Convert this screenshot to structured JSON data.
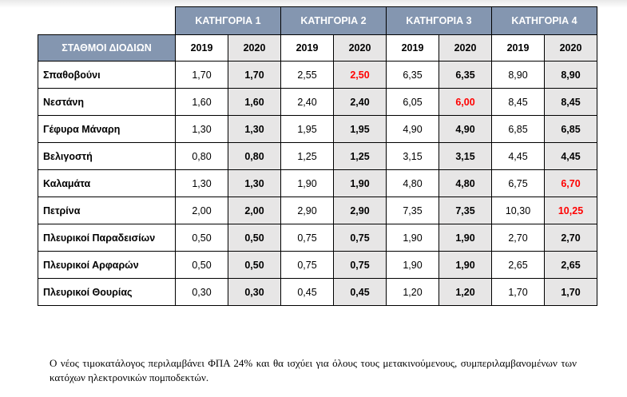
{
  "table": {
    "header_label": "ΣΤΑΘΜΟΙ ΔΙΟΔΙΩΝ",
    "categories": [
      "ΚΑΤΗΓΟΡΙΑ 1",
      "ΚΑΤΗΓΟΡΙΑ 2",
      "ΚΑΤΗΓΟΡΙΑ 3",
      "ΚΑΤΗΓΟΡΙΑ 4"
    ],
    "years": [
      "2019",
      "2020"
    ],
    "colors": {
      "header_bg": "#8496b0",
      "shade_2020": "#e7e6e6",
      "changed": "#ff0000"
    },
    "rows": [
      {
        "station": "Σπαθοβούνι",
        "values": [
          "1,70",
          "1,70",
          "2,55",
          "2,50",
          "6,35",
          "6,35",
          "8,90",
          "8,90"
        ],
        "changed": [
          3
        ]
      },
      {
        "station": "Νεστάνη",
        "values": [
          "1,60",
          "1,60",
          "2,40",
          "2,40",
          "6,05",
          "6,00",
          "8,45",
          "8,45"
        ],
        "changed": [
          5
        ]
      },
      {
        "station": "Γέφυρα Μάναρη",
        "values": [
          "1,30",
          "1,30",
          "1,95",
          "1,95",
          "4,90",
          "4,90",
          "6,85",
          "6,85"
        ],
        "changed": []
      },
      {
        "station": "Βελιγοστή",
        "values": [
          "0,80",
          "0,80",
          "1,25",
          "1,25",
          "3,15",
          "3,15",
          "4,45",
          "4,45"
        ],
        "changed": []
      },
      {
        "station": "Καλαμάτα",
        "values": [
          "1,30",
          "1,30",
          "1,90",
          "1,90",
          "4,80",
          "4,80",
          "6,75",
          "6,70"
        ],
        "changed": [
          7
        ]
      },
      {
        "station": "Πετρίνα",
        "values": [
          "2,00",
          "2,00",
          "2,90",
          "2,90",
          "7,35",
          "7,35",
          "10,30",
          "10,25"
        ],
        "changed": [
          7
        ]
      },
      {
        "station": "Πλευρικοί Παραδεισίων",
        "values": [
          "0,50",
          "0,50",
          "0,75",
          "0,75",
          "1,90",
          "1,90",
          "2,70",
          "2,70"
        ],
        "changed": []
      },
      {
        "station": "Πλευρικοί Αρφαρών",
        "values": [
          "0,50",
          "0,50",
          "0,75",
          "0,75",
          "1,90",
          "1,90",
          "2,65",
          "2,65"
        ],
        "changed": []
      },
      {
        "station": "Πλευρικοί Θουρίας",
        "values": [
          "0,30",
          "0,30",
          "0,45",
          "0,45",
          "1,20",
          "1,20",
          "1,70",
          "1,70"
        ],
        "changed": []
      }
    ]
  },
  "note": "Ο νέος τιμοκατάλογος περιλαμβάνει ΦΠΑ 24% και θα ισχύει για όλους τους μετακινούμενους, συμπεριλαμβανομένων των κατόχων ηλεκτρονικών πομποδεκτών."
}
